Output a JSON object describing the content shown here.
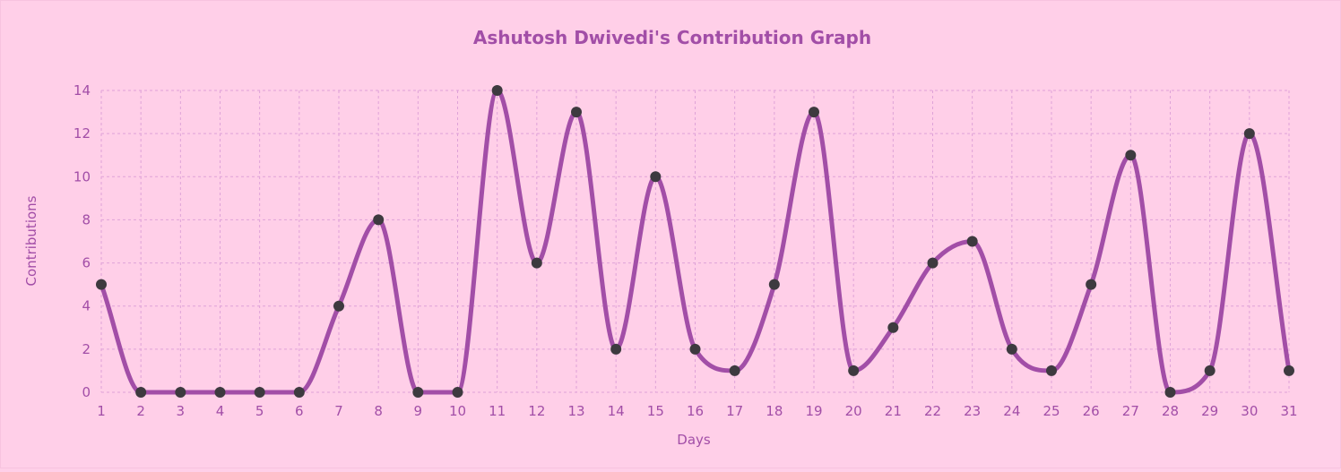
{
  "chart_data": {
    "type": "line",
    "title": "Ashutosh Dwivedi's Contribution Graph",
    "xlabel": "Days",
    "ylabel": "Contributions",
    "x": [
      1,
      2,
      3,
      4,
      5,
      6,
      7,
      8,
      9,
      10,
      11,
      12,
      13,
      14,
      15,
      16,
      17,
      18,
      19,
      20,
      21,
      22,
      23,
      24,
      25,
      26,
      27,
      28,
      29,
      30,
      31
    ],
    "series": [
      {
        "values": [
          5,
          0,
          0,
          0,
          0,
          0,
          4,
          8,
          0,
          0,
          14,
          6,
          13,
          2,
          10,
          2,
          1,
          5,
          13,
          1,
          3,
          6,
          7,
          2,
          1,
          5,
          11,
          0,
          1,
          12,
          1
        ]
      }
    ],
    "yticks": [
      "0",
      "2",
      "4",
      "6",
      "8",
      "10",
      "12",
      "14"
    ],
    "ylim": [
      0,
      14
    ],
    "grid": true,
    "colors": {
      "background": "#ffcfe8",
      "line": "#a24ea7",
      "point": "#3d3a3f",
      "grid": "#dfa2d8",
      "text": "#a24ea7"
    }
  }
}
